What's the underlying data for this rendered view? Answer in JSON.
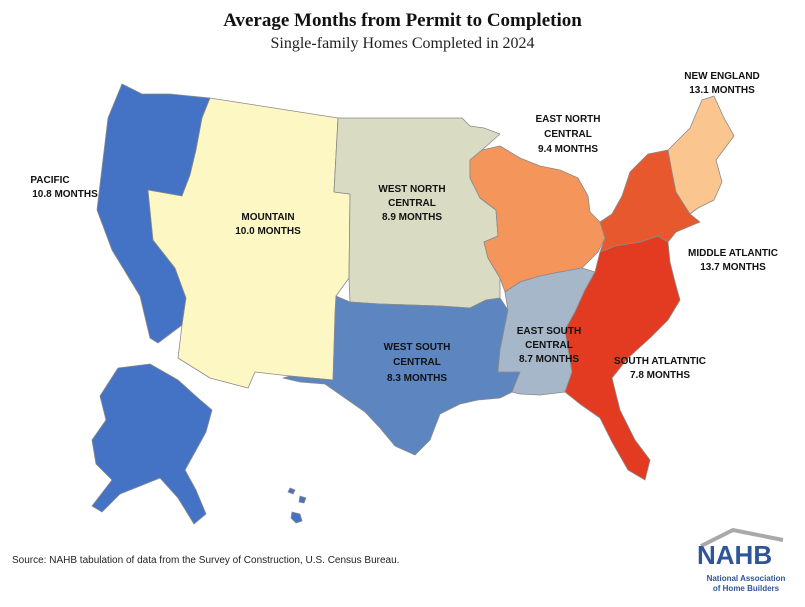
{
  "title": "Average Months from Permit to Completion",
  "subtitle": "Single-family Homes Completed in 2024",
  "regions": {
    "pacific": {
      "name": "PACIFIC",
      "value": "10.8 MONTHS",
      "color": "#4472c4"
    },
    "mountain": {
      "name": "MOUNTAIN",
      "value": "10.0 MONTHS",
      "color": "#fdf7c4"
    },
    "west_north_central": {
      "name_line1": "WEST NORTH",
      "name_line2": "CENTRAL",
      "value": "8.9 MONTHS",
      "color": "#d9dcc2"
    },
    "east_north_central": {
      "name_line1": "EAST NORTH",
      "name_line2": "CENTRAL",
      "value": "9.4 MONTHS",
      "color": "#f4955c"
    },
    "new_england": {
      "name": "NEW ENGLAND",
      "value": "13.1 MONTHS",
      "color": "#fbc58f"
    },
    "middle_atlantic": {
      "name": "MIDDLE ATLANTIC",
      "value": "13.7 MONTHS",
      "color": "#e8582f"
    },
    "south_atlantic": {
      "name": "SOUTH ATLATNTIC",
      "value": "7.8 MONTHS",
      "color": "#e23b22"
    },
    "east_south_central": {
      "name_line1": "EAST SOUTH",
      "name_line2": "CENTRAL",
      "value": "8.7 MONTHS",
      "color": "#a6b7c9"
    },
    "west_south_central": {
      "name_line1": "WEST SOUTH",
      "name_line2": "CENTRAL",
      "value": "8.3 MONTHS",
      "color": "#5d86c1"
    }
  },
  "source": "Source: NAHB tabulation of data from the Survey of Construction, U.S. Census Bureau.",
  "logo": {
    "word": "NAHB",
    "line1": "National Association",
    "line2": "of Home Builders",
    "color": "#2e5597",
    "roof_color": "#a9a9a9"
  }
}
